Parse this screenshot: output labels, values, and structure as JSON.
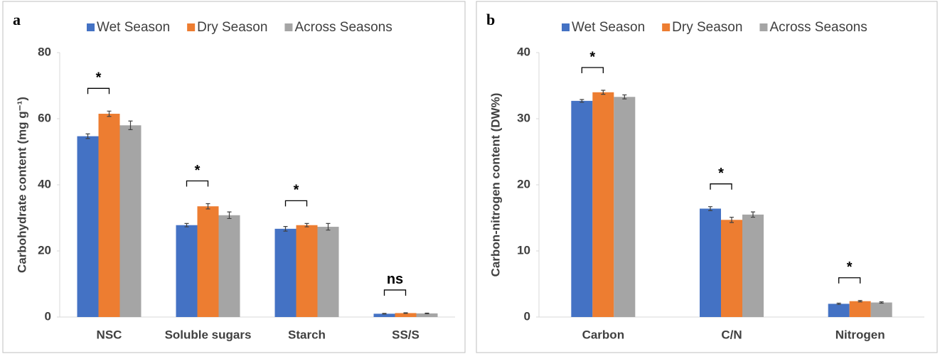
{
  "chart_data": [
    {
      "type": "bar",
      "panel": "a",
      "ylabel": "Carbohydrate content (mg g⁻¹)",
      "categories": [
        "NSC",
        "Soluble sugars",
        "Starch",
        "SS/S"
      ],
      "series": [
        {
          "name": "Wet Season",
          "color": "#4472c4",
          "values": [
            54.7,
            27.8,
            26.7,
            1.0
          ],
          "errors": [
            0.7,
            0.5,
            0.7,
            0.1
          ]
        },
        {
          "name": "Dry Season",
          "color": "#ed7d31",
          "values": [
            61.5,
            33.5,
            27.8,
            1.2
          ],
          "errors": [
            0.8,
            0.8,
            0.5,
            0.1
          ]
        },
        {
          "name": "Across Seasons",
          "color": "#a5a5a5",
          "values": [
            58.0,
            30.8,
            27.3,
            1.1
          ],
          "errors": [
            1.3,
            1.0,
            1.0,
            0.1
          ]
        }
      ],
      "significance": [
        "*",
        "*",
        "*",
        "ns"
      ],
      "ylim": [
        0,
        80
      ],
      "yticks": [
        0,
        20,
        40,
        60,
        80
      ],
      "grid": false
    },
    {
      "type": "bar",
      "panel": "b",
      "ylabel": "Carbon-nitrogen content (DW%)",
      "categories": [
        "Carbon",
        "C/N",
        "Nitrogen"
      ],
      "series": [
        {
          "name": "Wet Season",
          "color": "#4472c4",
          "values": [
            32.7,
            16.4,
            2.0
          ],
          "errors": [
            0.2,
            0.3,
            0.1
          ]
        },
        {
          "name": "Dry Season",
          "color": "#ed7d31",
          "values": [
            34.0,
            14.7,
            2.4
          ],
          "errors": [
            0.3,
            0.4,
            0.1
          ]
        },
        {
          "name": "Across Seasons",
          "color": "#a5a5a5",
          "values": [
            33.3,
            15.5,
            2.2
          ],
          "errors": [
            0.3,
            0.4,
            0.1
          ]
        }
      ],
      "significance": [
        "*",
        "*",
        "*"
      ],
      "ylim": [
        0,
        40
      ],
      "yticks": [
        0,
        10,
        20,
        30,
        40
      ],
      "grid": false
    }
  ]
}
